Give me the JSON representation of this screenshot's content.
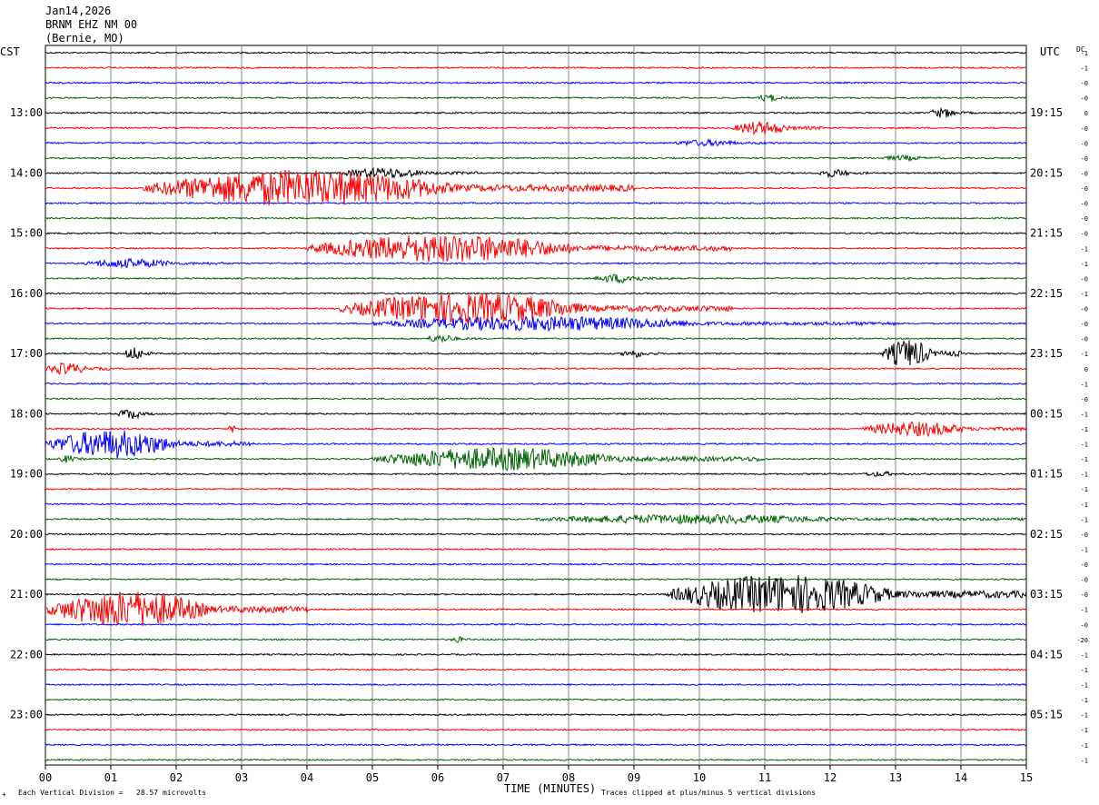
{
  "header": {
    "date": "Jan14,2026",
    "station": "BRNM EHZ NM 00",
    "location": "(Bernie, MO)"
  },
  "left_zone_label": "CST",
  "right_zone_label": "UTC",
  "dc_label": "DC",
  "footer": {
    "left_mark": "+",
    "scale_note": "Each Vertical Division =   28.57 microvolts",
    "clip_note": "Traces clipped at plus/minus 5 vertical divisions"
  },
  "chart_data": {
    "type": "line",
    "title": "",
    "xlabel": "TIME (MINUTES)",
    "x_ticks": [
      "00",
      "01",
      "02",
      "03",
      "04",
      "05",
      "06",
      "07",
      "08",
      "09",
      "10",
      "11",
      "12",
      "13",
      "14",
      "15"
    ],
    "xlim": [
      0,
      15
    ],
    "trace_minutes": 15,
    "trace_count": 48,
    "trace_colors": [
      "#000000",
      "#ff0000",
      "#0000ff",
      "#006400"
    ],
    "left_hour_labels": [
      "13:00",
      "14:00",
      "15:00",
      "16:00",
      "17:00",
      "18:00",
      "19:00",
      "20:00",
      "21:00",
      "22:00",
      "23:00"
    ],
    "right_hour_labels": [
      "19:15",
      "20:15",
      "21:15",
      "22:15",
      "23:15",
      "00:15",
      "01:15",
      "02:15",
      "03:15",
      "04:15",
      "05:15"
    ],
    "dc_offsets": [
      "-1",
      "-1",
      "-0",
      "-0",
      "0",
      "-0",
      "-0",
      "-0",
      "-0",
      "-0",
      "-0",
      "-0",
      "-0",
      "-1",
      "-1",
      "-0",
      "-1",
      "-0",
      "-0",
      "-0",
      "-1",
      "0",
      "-1",
      "-0",
      "-1",
      "-1",
      "-1",
      "-1",
      "-1",
      "-1",
      "-1",
      "-1",
      "-0",
      "-1",
      "-0",
      "-0",
      "-0",
      "-1",
      "-0",
      "-20",
      "-1",
      "-1",
      "-1",
      "-1",
      "-1",
      "-1",
      "-1",
      "-1"
    ],
    "events": [
      {
        "trace": 3,
        "start_min": 10.9,
        "end_min": 11.4,
        "amp_div": 0.5
      },
      {
        "trace": 4,
        "start_min": 13.5,
        "end_min": 14.2,
        "amp_div": 0.6
      },
      {
        "trace": 5,
        "start_min": 10.5,
        "end_min": 11.9,
        "amp_div": 0.9
      },
      {
        "trace": 6,
        "start_min": 9.6,
        "end_min": 11.2,
        "amp_div": 0.4
      },
      {
        "trace": 7,
        "start_min": 12.8,
        "end_min": 13.8,
        "amp_div": 0.3
      },
      {
        "trace": 8,
        "start_min": 4.5,
        "end_min": 6.6,
        "amp_div": 0.7
      },
      {
        "trace": 8,
        "start_min": 11.8,
        "end_min": 12.6,
        "amp_div": 0.5
      },
      {
        "trace": 9,
        "start_min": 1.5,
        "end_min": 9.0,
        "amp_div": 2.6
      },
      {
        "trace": 13,
        "start_min": 4.0,
        "end_min": 10.5,
        "amp_div": 2.0
      },
      {
        "trace": 14,
        "start_min": 0.6,
        "end_min": 2.8,
        "amp_div": 0.6
      },
      {
        "trace": 15,
        "start_min": 8.4,
        "end_min": 9.6,
        "amp_div": 0.6
      },
      {
        "trace": 17,
        "start_min": 4.5,
        "end_min": 10.5,
        "amp_div": 2.2
      },
      {
        "trace": 18,
        "start_min": 5.0,
        "end_min": 13.0,
        "amp_div": 1.0
      },
      {
        "trace": 19,
        "start_min": 5.8,
        "end_min": 6.6,
        "amp_div": 0.5
      },
      {
        "trace": 20,
        "start_min": 1.2,
        "end_min": 1.7,
        "amp_div": 0.9
      },
      {
        "trace": 20,
        "start_min": 8.8,
        "end_min": 9.4,
        "amp_div": 0.5
      },
      {
        "trace": 20,
        "start_min": 12.8,
        "end_min": 14.0,
        "amp_div": 2.0
      },
      {
        "trace": 21,
        "start_min": 0.0,
        "end_min": 1.0,
        "amp_div": 0.8
      },
      {
        "trace": 24,
        "start_min": 1.1,
        "end_min": 1.7,
        "amp_div": 0.7
      },
      {
        "trace": 25,
        "start_min": 2.8,
        "end_min": 3.0,
        "amp_div": 0.5
      },
      {
        "trace": 25,
        "start_min": 12.5,
        "end_min": 15.0,
        "amp_div": 1.0
      },
      {
        "trace": 26,
        "start_min": 0.0,
        "end_min": 3.2,
        "amp_div": 2.0
      },
      {
        "trace": 27,
        "start_min": 0.2,
        "end_min": 0.6,
        "amp_div": 0.5
      },
      {
        "trace": 27,
        "start_min": 5.0,
        "end_min": 11.0,
        "amp_div": 1.6
      },
      {
        "trace": 28,
        "start_min": 12.5,
        "end_min": 13.3,
        "amp_div": 0.3
      },
      {
        "trace": 31,
        "start_min": 7.5,
        "end_min": 15.0,
        "amp_div": 0.6
      },
      {
        "trace": 36,
        "start_min": 9.5,
        "end_min": 15.0,
        "amp_div": 2.8
      },
      {
        "trace": 37,
        "start_min": 0.0,
        "end_min": 4.0,
        "amp_div": 2.6
      },
      {
        "trace": 39,
        "start_min": 6.2,
        "end_min": 6.5,
        "amp_div": 0.4
      }
    ]
  }
}
